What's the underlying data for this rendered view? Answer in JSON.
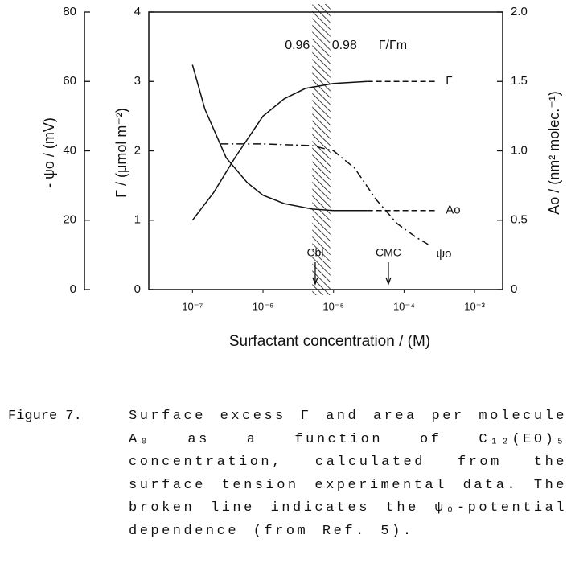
{
  "chart_data": {
    "type": "line",
    "xlabel": "Surfactant concentration  /  (M)",
    "xscale": "log",
    "xlim": [
      2.4e-08,
      0.0025
    ],
    "xticks": [
      {
        "value": 1e-07,
        "label": "10⁻⁷"
      },
      {
        "value": 1e-06,
        "label": "10⁻⁶"
      },
      {
        "value": 1e-05,
        "label": "10⁻⁵"
      },
      {
        "value": 0.0001,
        "label": "10⁻⁴"
      },
      {
        "value": 0.001,
        "label": "10⁻³"
      }
    ],
    "ylabel": "Γ / (μmol m⁻²)",
    "ylim": [
      0,
      4
    ],
    "yticks": [
      0,
      1,
      2,
      3,
      4
    ],
    "y2label": "Ao / (nm² molec.⁻¹)",
    "y2lim": [
      0,
      2
    ],
    "y2ticks": [
      0,
      0.5,
      {
        "value": 1,
        "label": "1.0"
      },
      1.5,
      {
        "value": 2,
        "label": "2.0"
      }
    ],
    "y3label": "- ψo / (mV)",
    "y3lim": [
      0,
      80
    ],
    "y3ticks": [
      0,
      20,
      40,
      60,
      80
    ],
    "series": [
      {
        "name": "Γ",
        "axis": "y",
        "style": "solid",
        "color": "#111111",
        "x": [
          1e-07,
          2e-07,
          4e-07,
          1e-06,
          2e-06,
          4e-06,
          1e-05,
          3e-05
        ],
        "values": [
          1.0,
          1.4,
          1.9,
          2.5,
          2.75,
          2.9,
          2.97,
          3.0
        ]
      },
      {
        "axis": "y",
        "style": "dashed",
        "color": "#111111",
        "x": [
          3e-05,
          0.0003
        ],
        "values": [
          3.0,
          3.0
        ]
      },
      {
        "name": "Ao",
        "axis": "y2",
        "style": "solid",
        "color": "#111111",
        "x": [
          1e-07,
          1.5e-07,
          3e-07,
          6e-07,
          1e-06,
          2e-06,
          5e-06,
          1e-05,
          3e-05
        ],
        "values": [
          1.62,
          1.3,
          0.95,
          0.77,
          0.68,
          0.62,
          0.58,
          0.57,
          0.57
        ]
      },
      {
        "axis": "y2",
        "style": "dashed",
        "color": "#111111",
        "x": [
          3e-05,
          0.0003
        ],
        "values": [
          0.57,
          0.57
        ]
      },
      {
        "name": "ψo",
        "axis": "y3",
        "style": "dashdot",
        "color": "#111111",
        "x": [
          2.5e-07,
          1e-06,
          5e-06,
          1e-05,
          2e-05,
          4e-05,
          8e-05,
          0.00015,
          0.00022
        ],
        "values": [
          42,
          42,
          41.5,
          40,
          35,
          26,
          19,
          15,
          13
        ]
      }
    ],
    "band": {
      "x": [
        5e-06,
        9e-06
      ],
      "labels": [
        "0.96",
        "0.98"
      ],
      "title": "Γ/Γm"
    },
    "annotations": [
      {
        "text": "Cbl",
        "x": 5.5e-06
      },
      {
        "text": "CMC",
        "x": 6e-05
      }
    ]
  },
  "caption": {
    "label": "Figure 7.",
    "text": "Surface excess Γ and area per molecule A₀ as a function of C₁₂(EO)₅ concentration, calculated from the surface tension experimental data. The broken line indicates the ψ₀-potential dependence (from Ref. 5)."
  }
}
